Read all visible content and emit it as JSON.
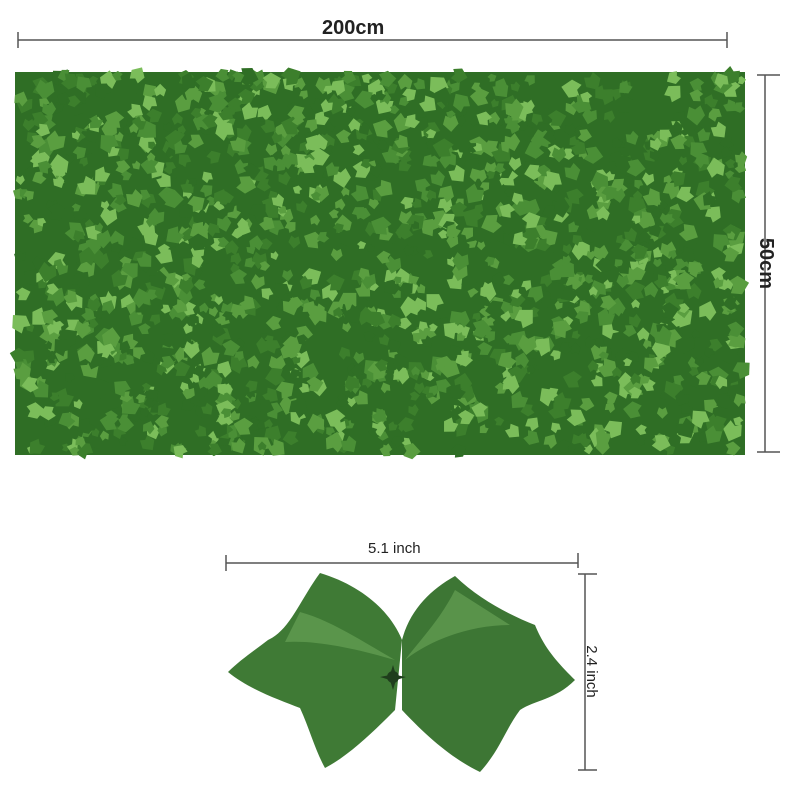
{
  "panel": {
    "width_label": "200cm",
    "height_label": "50cm"
  },
  "leaf": {
    "width_label": "5.1 inch",
    "height_label": "2.4 inch"
  },
  "colors": {
    "leaf_dark": "#2f6e25",
    "leaf_mid": "#4a8f36",
    "leaf_light": "#7bbd5a",
    "single_leaf": "#3f7a35",
    "dimension_line": "#555555"
  }
}
